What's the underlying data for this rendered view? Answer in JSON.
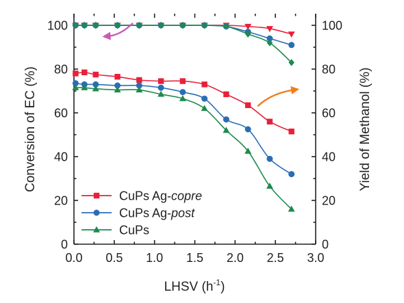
{
  "chart_data": {
    "type": "line",
    "xlabel": "LHSV (h",
    "xlabel_sup": "-1",
    "xlabel_end": ")",
    "ylabel_left": "Conversion of EC (%)",
    "ylabel_right": "Yield of Methanol (%)",
    "xlim": [
      0.0,
      3.0
    ],
    "ylim_left": [
      0,
      100
    ],
    "ylim_right": [
      0,
      100
    ],
    "xticks": [
      "0.0",
      "0.5",
      "1.0",
      "1.5",
      "2.0",
      "2.5",
      "3.0"
    ],
    "yticks_left": [
      "0",
      "20",
      "40",
      "60",
      "80",
      "100"
    ],
    "yticks_right": [
      "0",
      "20",
      "40",
      "60",
      "80",
      "100"
    ],
    "grid": false,
    "legend_position": "bottom-left",
    "legend": [
      {
        "prefix": "CuPs Ag-",
        "suffix": "copre",
        "marker": "square",
        "color": "#e8203a"
      },
      {
        "prefix": "CuPs Ag-",
        "suffix": "post",
        "marker": "circle",
        "color": "#2a6db5"
      },
      {
        "prefix": "CuPs",
        "suffix": "",
        "marker": "triangle",
        "color": "#1d8a4f"
      }
    ],
    "series": [
      {
        "group": "conversion",
        "marker": "invtriangle",
        "color": "#e8203a",
        "x": [
          0.02,
          0.13,
          0.27,
          0.54,
          0.81,
          1.08,
          1.35,
          1.62,
          1.89,
          2.16,
          2.43,
          2.7
        ],
        "y": [
          100,
          100,
          100,
          100,
          100,
          100,
          100,
          100,
          100,
          99.5,
          98.5,
          96
        ]
      },
      {
        "group": "conversion",
        "marker": "circle",
        "color": "#2a6db5",
        "x": [
          0.02,
          0.13,
          0.27,
          0.54,
          0.81,
          1.08,
          1.35,
          1.62,
          1.89,
          2.16,
          2.43,
          2.7
        ],
        "y": [
          100,
          100,
          100,
          100,
          100,
          100,
          100,
          100,
          99.5,
          97,
          94,
          91
        ]
      },
      {
        "group": "conversion",
        "marker": "diamond",
        "color": "#1d8a4f",
        "x": [
          0.02,
          0.13,
          0.27,
          0.54,
          0.81,
          1.08,
          1.35,
          1.62,
          1.89,
          2.16,
          2.43,
          2.7
        ],
        "y": [
          100,
          100,
          100,
          100,
          100,
          100,
          100,
          100,
          99.5,
          96,
          92,
          83
        ]
      },
      {
        "group": "yield",
        "marker": "square",
        "color": "#e8203a",
        "x": [
          0.02,
          0.13,
          0.27,
          0.54,
          0.81,
          1.08,
          1.35,
          1.62,
          1.89,
          2.16,
          2.43,
          2.7
        ],
        "y": [
          78,
          78.5,
          77.5,
          76.5,
          75,
          74.5,
          74.5,
          73,
          68.5,
          63.5,
          56,
          51.5
        ]
      },
      {
        "group": "yield",
        "marker": "circle",
        "color": "#2a6db5",
        "x": [
          0.02,
          0.13,
          0.27,
          0.54,
          0.81,
          1.08,
          1.35,
          1.62,
          1.89,
          2.16,
          2.43,
          2.7
        ],
        "y": [
          73.5,
          73,
          73,
          72.5,
          72.5,
          71.5,
          69.5,
          66.5,
          57,
          52.5,
          39,
          32
        ]
      },
      {
        "group": "yield",
        "marker": "triangle",
        "color": "#1d8a4f",
        "x": [
          0.02,
          0.13,
          0.27,
          0.54,
          0.81,
          1.08,
          1.35,
          1.62,
          1.89,
          2.16,
          2.43,
          2.7
        ],
        "y": [
          71.5,
          71.5,
          71,
          70.5,
          70.5,
          68.5,
          66.5,
          62,
          52,
          42.5,
          26.5,
          16
        ]
      }
    ],
    "annotations": [
      {
        "name": "left-axis-arrow",
        "color": "#c85ab4",
        "points": [
          [
            0.73,
            101
          ],
          [
            0.58,
            95.5
          ],
          [
            0.42,
            95
          ]
        ]
      },
      {
        "name": "right-axis-arrow",
        "color": "#f07d1e",
        "points": [
          [
            2.28,
            63
          ],
          [
            2.45,
            69
          ],
          [
            2.73,
            70.5
          ]
        ]
      }
    ]
  }
}
